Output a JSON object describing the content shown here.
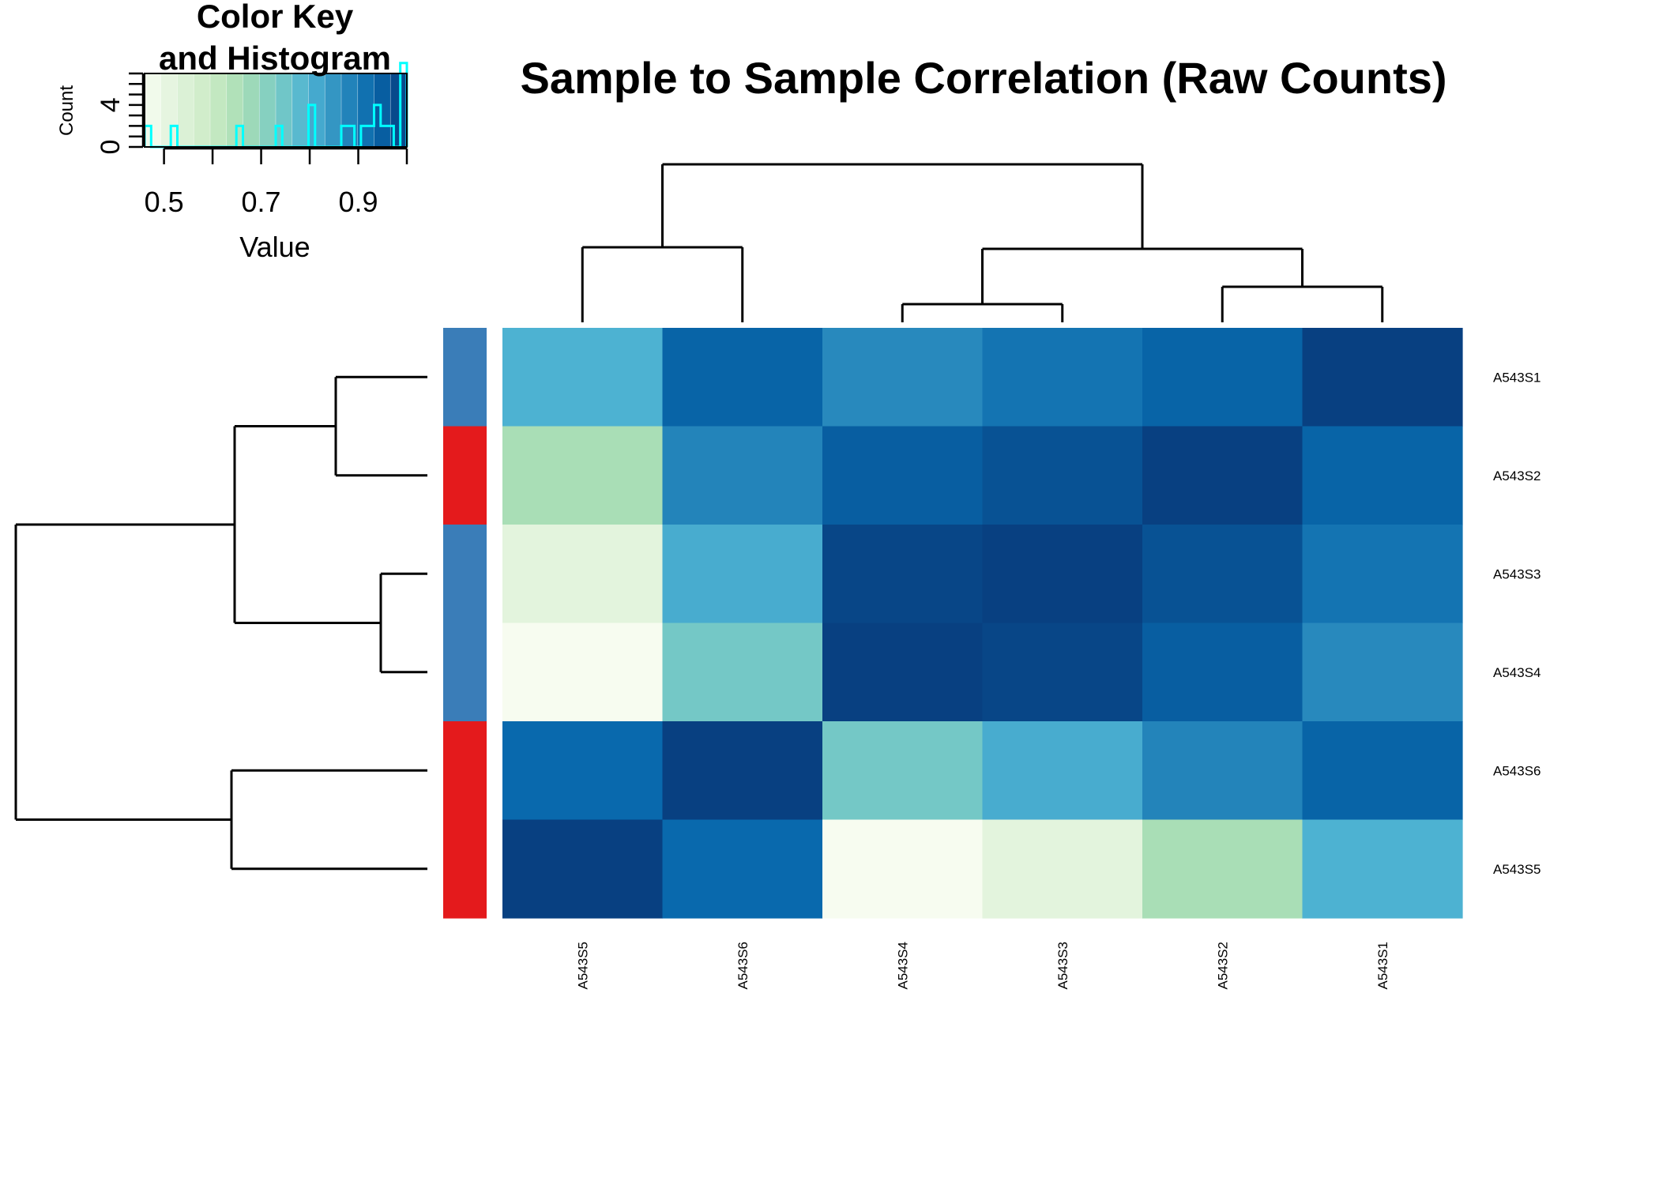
{
  "chart_data": {
    "type": "heatmap",
    "title": "Sample to Sample Correlation (Raw Counts)",
    "rows": [
      "A543S1",
      "A543S2",
      "A543S3",
      "A543S4",
      "A543S6",
      "A543S5"
    ],
    "columns": [
      "A543S5",
      "A543S6",
      "A543S4",
      "A543S3",
      "A543S2",
      "A543S1"
    ],
    "values": [
      [
        0.8,
        0.94,
        0.87,
        0.91,
        0.94,
        1.0
      ],
      [
        0.66,
        0.88,
        0.95,
        0.97,
        1.0,
        0.94
      ],
      [
        0.52,
        0.81,
        0.99,
        1.0,
        0.97,
        0.91
      ],
      [
        0.46,
        0.74,
        1.0,
        0.99,
        0.95,
        0.87
      ],
      [
        0.93,
        1.0,
        0.74,
        0.81,
        0.88,
        0.94
      ],
      [
        1.0,
        0.93,
        0.46,
        0.52,
        0.66,
        0.8
      ]
    ],
    "row_side_colors": [
      "#3A7DB8",
      "#E41A1C",
      "#3A7DB8",
      "#3A7DB8",
      "#E41A1C",
      "#E41A1C"
    ],
    "column_dendrogram": "((A543S5,A543S6),((A543S4,A543S3),(A543S2,A543S1)))",
    "row_dendrogram": "(((A543S1,A543S2),(A543S3,A543S4)),(A543S6,A543S5))",
    "color_key": {
      "title_line1": "Color Key",
      "title_line2": "and Histogram",
      "xlabel": "Value",
      "ylabel": "Count",
      "x_ticks": [
        "0.5",
        "0.7",
        "0.9"
      ],
      "x_tick_values": [
        0.5,
        0.7,
        0.9
      ],
      "y_ticks": [
        "0",
        "4"
      ],
      "y_tick_values": [
        0,
        4
      ],
      "range": [
        0.46,
        1.0
      ],
      "count_max": 7,
      "palette": [
        "#F7FCF0",
        "#E0F3DB",
        "#CCEBC5",
        "#A8DDB5",
        "#7BCCC4",
        "#4EB3D3",
        "#2B8CBE",
        "#0868AC",
        "#084081"
      ],
      "histogram_color": "#00FFFF"
    }
  }
}
